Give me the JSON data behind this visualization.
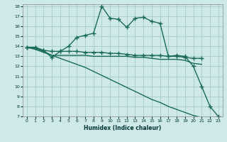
{
  "xlabel": "Humidex (Indice chaleur)",
  "bg_color": "#cfe9e9",
  "grid_color": "#a8d0c8",
  "line_color": "#1a6b5a",
  "xlim": [
    -0.5,
    23.5
  ],
  "ylim": [
    7,
    18.2
  ],
  "xticks": [
    0,
    1,
    2,
    3,
    4,
    5,
    6,
    7,
    8,
    9,
    10,
    11,
    12,
    13,
    14,
    15,
    16,
    17,
    18,
    19,
    20,
    21,
    22,
    23
  ],
  "yticks": [
    7,
    8,
    9,
    10,
    11,
    12,
    13,
    14,
    15,
    16,
    17,
    18
  ],
  "y_peak": [
    13.9,
    13.9,
    13.6,
    12.9,
    13.5,
    14.0,
    14.9,
    15.1,
    15.3,
    18.0,
    16.8,
    16.7,
    15.9,
    16.8,
    16.9,
    16.5,
    16.3,
    13.0,
    13.1,
    13.0,
    12.0,
    10.0,
    8.0,
    7.0
  ],
  "y_flat_top": [
    13.9,
    13.9,
    13.6,
    13.5,
    13.5,
    13.5,
    13.5,
    13.4,
    13.4,
    13.4,
    13.3,
    13.3,
    13.2,
    13.1,
    13.1,
    13.1,
    13.1,
    13.0,
    13.0,
    12.9,
    12.8,
    12.8
  ],
  "y_flat_mid": [
    13.9,
    13.8,
    13.5,
    13.1,
    13.1,
    13.1,
    13.1,
    13.1,
    13.0,
    13.0,
    13.0,
    13.0,
    13.0,
    12.9,
    12.9,
    12.8,
    12.7,
    12.7,
    12.7,
    12.6,
    12.3,
    12.2
  ],
  "y_diag": [
    13.9,
    13.7,
    13.4,
    13.1,
    12.8,
    12.5,
    12.2,
    11.9,
    11.5,
    11.1,
    10.7,
    10.3,
    9.9,
    9.5,
    9.1,
    8.7,
    8.4,
    8.0,
    7.7,
    7.4,
    7.1,
    6.9,
    6.9,
    6.9
  ],
  "x_all": [
    0,
    1,
    2,
    3,
    4,
    5,
    6,
    7,
    8,
    9,
    10,
    11,
    12,
    13,
    14,
    15,
    16,
    17,
    18,
    19,
    20,
    21,
    22,
    23
  ],
  "x_short": [
    0,
    1,
    2,
    3,
    4,
    5,
    6,
    7,
    8,
    9,
    10,
    11,
    12,
    13,
    14,
    15,
    16,
    17,
    18,
    19,
    20,
    21
  ]
}
